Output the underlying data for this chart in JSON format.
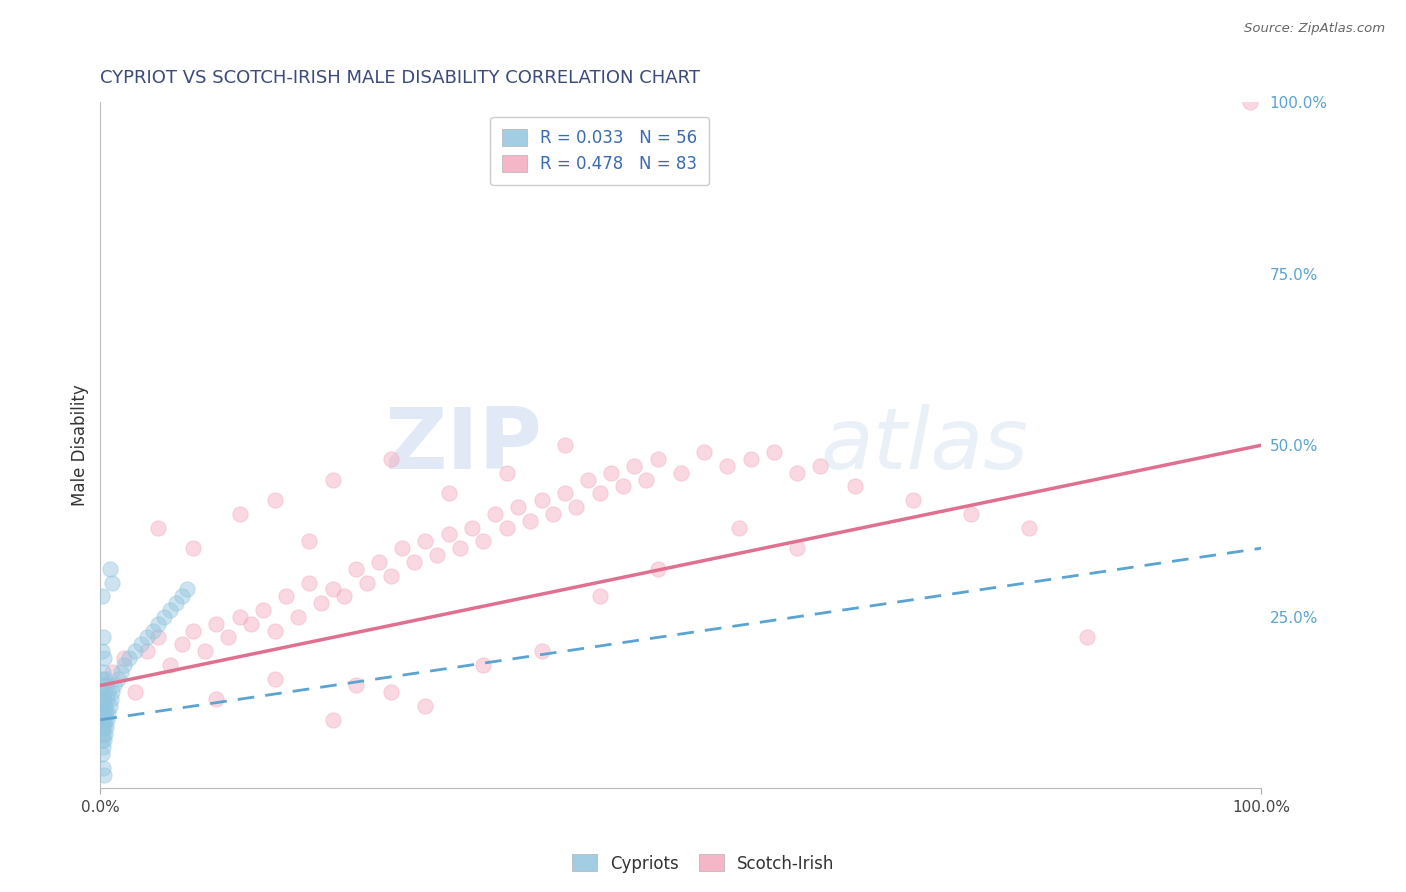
{
  "title": "CYPRIOT VS SCOTCH-IRISH MALE DISABILITY CORRELATION CHART",
  "source_text": "Source: ZipAtlas.com",
  "ylabel": "Male Disability",
  "xlabel": "",
  "xlim": [
    0,
    1
  ],
  "ylim": [
    0,
    1
  ],
  "xtick_labels": [
    "0.0%",
    "100.0%"
  ],
  "ytick_labels_right": [
    "25.0%",
    "50.0%",
    "75.0%",
    "100.0%"
  ],
  "ytick_positions_right": [
    0.25,
    0.5,
    0.75,
    1.0
  ],
  "watermark_zip": "ZIP",
  "watermark_atlas": "atlas",
  "legend_entry1": "R = 0.033   N = 56",
  "legend_entry2": "R = 0.478   N = 83",
  "cypriot_color": "#92c5de",
  "scotch_irish_color": "#f4a9be",
  "cypriot_line_color": "#5ba3d0",
  "scotch_irish_line_color": "#e07090",
  "title_color": "#3a4a7a",
  "source_color": "#666666",
  "grid_color": "#cccccc",
  "background_color": "#ffffff",
  "cypriot_x": [
    0.001,
    0.001,
    0.001,
    0.001,
    0.001,
    0.001,
    0.001,
    0.001,
    0.001,
    0.001,
    0.002,
    0.002,
    0.002,
    0.002,
    0.002,
    0.002,
    0.002,
    0.002,
    0.003,
    0.003,
    0.003,
    0.003,
    0.003,
    0.004,
    0.004,
    0.004,
    0.004,
    0.005,
    0.005,
    0.005,
    0.006,
    0.006,
    0.007,
    0.007,
    0.008,
    0.009,
    0.01,
    0.012,
    0.015,
    0.018,
    0.02,
    0.025,
    0.03,
    0.035,
    0.04,
    0.045,
    0.05,
    0.055,
    0.06,
    0.065,
    0.07,
    0.075,
    0.01,
    0.008,
    0.003,
    0.002
  ],
  "cypriot_y": [
    0.05,
    0.07,
    0.09,
    0.1,
    0.11,
    0.12,
    0.14,
    0.16,
    0.2,
    0.28,
    0.06,
    0.08,
    0.1,
    0.11,
    0.13,
    0.15,
    0.17,
    0.22,
    0.07,
    0.09,
    0.11,
    0.13,
    0.19,
    0.08,
    0.1,
    0.12,
    0.16,
    0.09,
    0.11,
    0.15,
    0.1,
    0.13,
    0.11,
    0.14,
    0.12,
    0.13,
    0.14,
    0.15,
    0.16,
    0.17,
    0.18,
    0.19,
    0.2,
    0.21,
    0.22,
    0.23,
    0.24,
    0.25,
    0.26,
    0.27,
    0.28,
    0.29,
    0.3,
    0.32,
    0.02,
    0.03
  ],
  "scotch_irish_x": [
    0.01,
    0.02,
    0.03,
    0.04,
    0.05,
    0.06,
    0.07,
    0.08,
    0.09,
    0.1,
    0.11,
    0.12,
    0.13,
    0.14,
    0.15,
    0.16,
    0.17,
    0.18,
    0.19,
    0.2,
    0.21,
    0.22,
    0.23,
    0.24,
    0.25,
    0.26,
    0.27,
    0.28,
    0.29,
    0.3,
    0.31,
    0.32,
    0.33,
    0.34,
    0.35,
    0.36,
    0.37,
    0.38,
    0.39,
    0.4,
    0.41,
    0.42,
    0.43,
    0.44,
    0.45,
    0.46,
    0.47,
    0.48,
    0.5,
    0.52,
    0.54,
    0.56,
    0.58,
    0.6,
    0.62,
    0.65,
    0.7,
    0.75,
    0.8,
    0.85,
    0.15,
    0.2,
    0.25,
    0.3,
    0.35,
    0.4,
    0.1,
    0.15,
    0.2,
    0.25,
    0.05,
    0.08,
    0.12,
    0.18,
    0.22,
    0.28,
    0.33,
    0.38,
    0.43,
    0.48,
    0.55,
    0.6,
    0.99
  ],
  "scotch_irish_y": [
    0.17,
    0.19,
    0.14,
    0.2,
    0.22,
    0.18,
    0.21,
    0.23,
    0.2,
    0.24,
    0.22,
    0.25,
    0.24,
    0.26,
    0.23,
    0.28,
    0.25,
    0.3,
    0.27,
    0.29,
    0.28,
    0.32,
    0.3,
    0.33,
    0.31,
    0.35,
    0.33,
    0.36,
    0.34,
    0.37,
    0.35,
    0.38,
    0.36,
    0.4,
    0.38,
    0.41,
    0.39,
    0.42,
    0.4,
    0.43,
    0.41,
    0.45,
    0.43,
    0.46,
    0.44,
    0.47,
    0.45,
    0.48,
    0.46,
    0.49,
    0.47,
    0.48,
    0.49,
    0.46,
    0.47,
    0.44,
    0.42,
    0.4,
    0.38,
    0.22,
    0.42,
    0.45,
    0.48,
    0.43,
    0.46,
    0.5,
    0.13,
    0.16,
    0.1,
    0.14,
    0.38,
    0.35,
    0.4,
    0.36,
    0.15,
    0.12,
    0.18,
    0.2,
    0.28,
    0.32,
    0.38,
    0.35,
    1.0
  ],
  "pink_line_x0": 0.0,
  "pink_line_y0": 0.15,
  "pink_line_x1": 1.0,
  "pink_line_y1": 0.5,
  "blue_line_x0": 0.0,
  "blue_line_y0": 0.1,
  "blue_line_x1": 1.0,
  "blue_line_y1": 0.35,
  "marker_size": 120,
  "marker_alpha": 0.45,
  "marker_lw": 0.8
}
